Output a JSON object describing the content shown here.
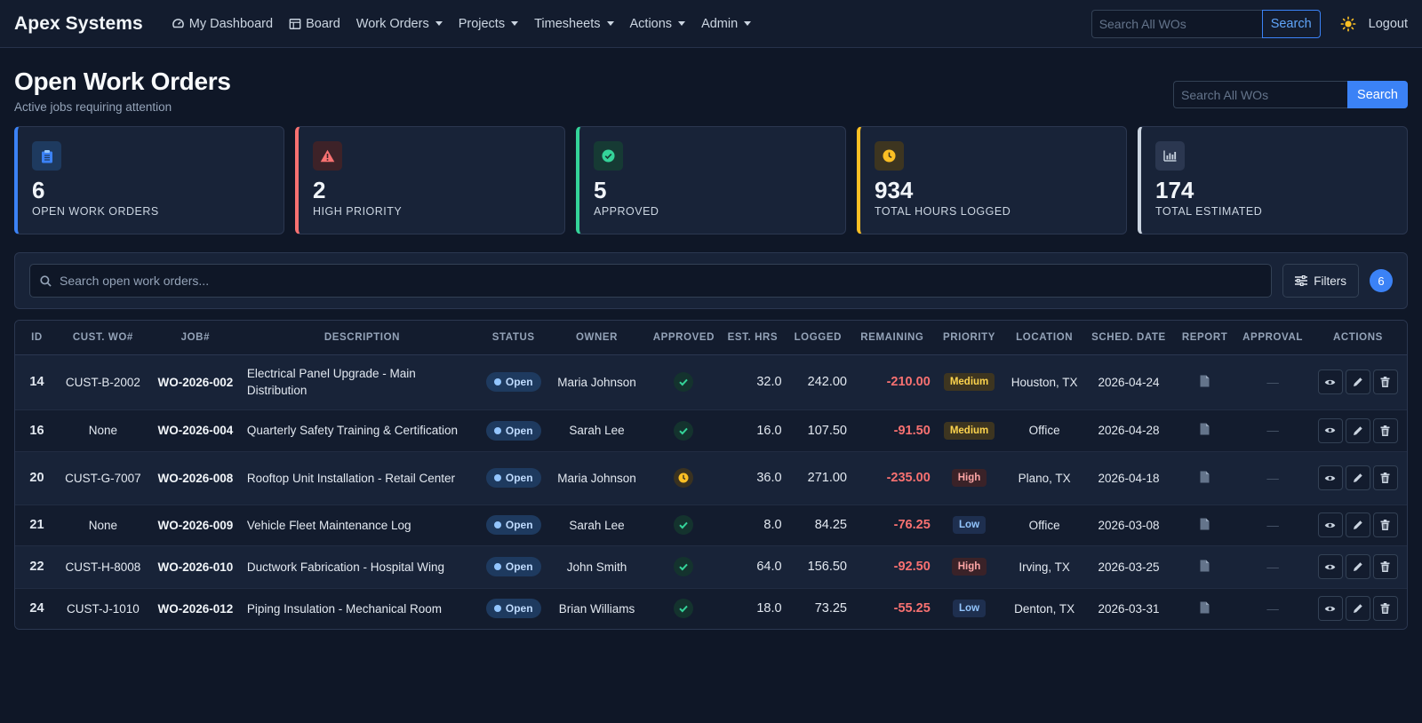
{
  "navbar": {
    "brand": "Apex Systems",
    "items": [
      {
        "label": "My Dashboard",
        "icon": "gauge-icon",
        "dropdown": false
      },
      {
        "label": "Board",
        "icon": "board-icon",
        "dropdown": false
      },
      {
        "label": "Work Orders",
        "dropdown": true
      },
      {
        "label": "Projects",
        "dropdown": true
      },
      {
        "label": "Timesheets",
        "dropdown": true
      },
      {
        "label": "Actions",
        "dropdown": true
      },
      {
        "label": "Admin",
        "dropdown": true
      }
    ],
    "search_placeholder": "Search All WOs",
    "search_button": "Search",
    "theme_icon": "sun-icon",
    "logout": "Logout"
  },
  "header": {
    "title": "Open Work Orders",
    "subtitle": "Active jobs requiring attention",
    "search_placeholder": "Search All WOs",
    "search_button": "Search"
  },
  "stats": [
    {
      "value": "6",
      "label": "OPEN WORK ORDERS",
      "icon": "clipboard-icon",
      "color": "#3b82f6"
    },
    {
      "value": "2",
      "label": "HIGH PRIORITY",
      "icon": "warning-icon",
      "color": "#f87171"
    },
    {
      "value": "5",
      "label": "APPROVED",
      "icon": "check-circle-icon",
      "color": "#34d399"
    },
    {
      "value": "934",
      "label": "TOTAL HOURS LOGGED",
      "icon": "clock-icon",
      "color": "#fbbf24"
    },
    {
      "value": "174",
      "label": "TOTAL ESTIMATED",
      "icon": "chart-icon",
      "color": "#94a3b8"
    }
  ],
  "filter_bar": {
    "search_placeholder": "Search open work orders...",
    "filters_label": "Filters",
    "count": "6"
  },
  "table": {
    "headers": {
      "id": "ID",
      "cust_wo": "CUST. WO#",
      "job": "JOB#",
      "description": "DESCRIPTION",
      "status": "STATUS",
      "owner": "OWNER",
      "approved": "APPROVED",
      "est_hrs": "EST. HRS",
      "logged": "LOGGED",
      "remaining": "REMAINING",
      "priority": "PRIORITY",
      "location": "LOCATION",
      "sched_date": "SCHED. DATE",
      "report": "REPORT",
      "approval": "APPROVAL",
      "actions": "ACTIONS"
    },
    "rows": [
      {
        "id": "14",
        "cust_wo": "CUST-B-2002",
        "job": "WO-2026-002",
        "description": "Electrical Panel Upgrade - Main Distribution",
        "status": "Open",
        "owner": "Maria Johnson",
        "approved": "yes",
        "est_hrs": "32.0",
        "logged": "242.00",
        "remaining": "-210.00",
        "priority": "Medium",
        "location": "Houston, TX",
        "sched_date": "2026-04-24",
        "approval": "—"
      },
      {
        "id": "16",
        "cust_wo": "None",
        "job": "WO-2026-004",
        "description": "Quarterly Safety Training & Certification",
        "status": "Open",
        "owner": "Sarah Lee",
        "approved": "yes",
        "est_hrs": "16.0",
        "logged": "107.50",
        "remaining": "-91.50",
        "priority": "Medium",
        "location": "Office",
        "sched_date": "2026-04-28",
        "approval": "—"
      },
      {
        "id": "20",
        "cust_wo": "CUST-G-7007",
        "job": "WO-2026-008",
        "description": "Rooftop Unit Installation - Retail Center",
        "status": "Open",
        "owner": "Maria Johnson",
        "approved": "pending",
        "est_hrs": "36.0",
        "logged": "271.00",
        "remaining": "-235.00",
        "priority": "High",
        "location": "Plano, TX",
        "sched_date": "2026-04-18",
        "approval": "—"
      },
      {
        "id": "21",
        "cust_wo": "None",
        "job": "WO-2026-009",
        "description": "Vehicle Fleet Maintenance Log",
        "status": "Open",
        "owner": "Sarah Lee",
        "approved": "yes",
        "est_hrs": "8.0",
        "logged": "84.25",
        "remaining": "-76.25",
        "priority": "Low",
        "location": "Office",
        "sched_date": "2026-03-08",
        "approval": "—"
      },
      {
        "id": "22",
        "cust_wo": "CUST-H-8008",
        "job": "WO-2026-010",
        "description": "Ductwork Fabrication - Hospital Wing",
        "status": "Open",
        "owner": "John Smith",
        "approved": "yes",
        "est_hrs": "64.0",
        "logged": "156.50",
        "remaining": "-92.50",
        "priority": "High",
        "location": "Irving, TX",
        "sched_date": "2026-03-25",
        "approval": "—"
      },
      {
        "id": "24",
        "cust_wo": "CUST-J-1010",
        "job": "WO-2026-012",
        "description": "Piping Insulation - Mechanical Room",
        "status": "Open",
        "owner": "Brian Williams",
        "approved": "yes",
        "est_hrs": "18.0",
        "logged": "73.25",
        "remaining": "-55.25",
        "priority": "Low",
        "location": "Denton, TX",
        "sched_date": "2026-03-31",
        "approval": "—"
      }
    ]
  }
}
